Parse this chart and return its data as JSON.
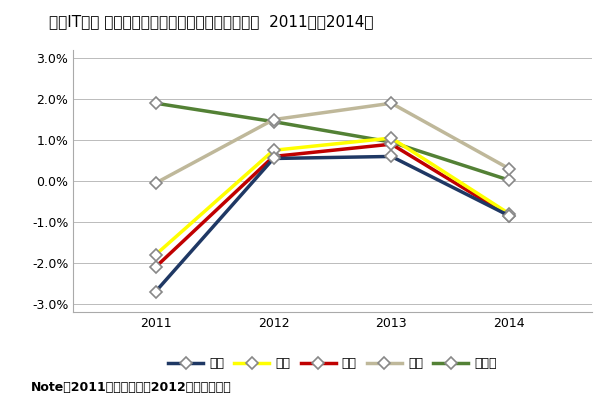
{
  "title": "国内IT市場 主要産業の前年比成長率の推移予測：  2011年～2014年",
  "note": "Note：2011年は実績値、2012年以降は予測",
  "years": [
    2011,
    2012,
    2013,
    2014
  ],
  "series": {
    "金融": {
      "values": [
        -2.7,
        0.55,
        0.6,
        -0.85
      ],
      "color": "#1f3864",
      "marker": "D",
      "zorder": 5
    },
    "製造": {
      "values": [
        -1.8,
        0.75,
        1.05,
        -0.8
      ],
      "color": "#ffff00",
      "marker": "D",
      "zorder": 4
    },
    "流通": {
      "values": [
        -2.1,
        0.6,
        0.9,
        -0.85
      ],
      "color": "#c00000",
      "marker": "D",
      "zorder": 3
    },
    "医療": {
      "values": [
        -0.05,
        1.5,
        1.9,
        0.3
      ],
      "color": "#bfb89a",
      "marker": "D",
      "zorder": 2
    },
    "官公庁": {
      "values": [
        1.9,
        1.45,
        0.95,
        0.02
      ],
      "color": "#538135",
      "marker": "D",
      "zorder": 1
    }
  },
  "ylim": [
    -3.2,
    3.2
  ],
  "yticks": [
    -3.0,
    -2.0,
    -1.0,
    0.0,
    1.0,
    2.0,
    3.0
  ],
  "ytick_labels": [
    "-3.0%",
    "-2.0%",
    "-1.0%",
    "0.0%",
    "1.0%",
    "2.0%",
    "3.0%"
  ],
  "background_color": "#ffffff",
  "plot_bg_color": "#ffffff",
  "grid_color": "#bbbbbb",
  "title_fontsize": 11,
  "legend_fontsize": 9,
  "note_fontsize": 9
}
